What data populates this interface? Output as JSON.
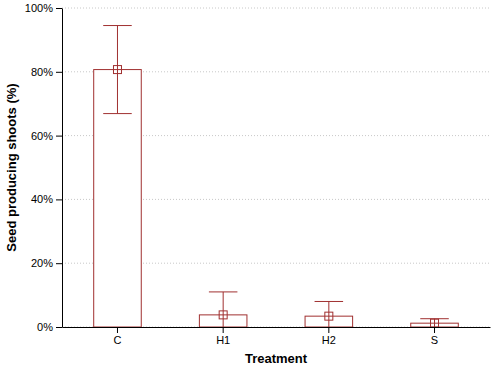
{
  "chart_data": {
    "type": "bar",
    "x_label": "Treatment",
    "y_label": "Seed producing shoots (%)",
    "categories": [
      "C",
      "H1",
      "H2",
      "S"
    ],
    "values": [
      80.7,
      3.8,
      3.4,
      1.2
    ],
    "errors": [
      13.8,
      7.2,
      4.6,
      1.4
    ],
    "color": "#a03030",
    "marker": "square",
    "ylim": [
      0,
      100
    ],
    "yticks": [
      {
        "value": 0,
        "label": "0%"
      },
      {
        "value": 20,
        "label": "20%"
      },
      {
        "value": 40,
        "label": "40%"
      },
      {
        "value": 60,
        "label": "60%"
      },
      {
        "value": 80,
        "label": "80%"
      },
      {
        "value": 100,
        "label": "100%"
      }
    ],
    "grid": true
  }
}
